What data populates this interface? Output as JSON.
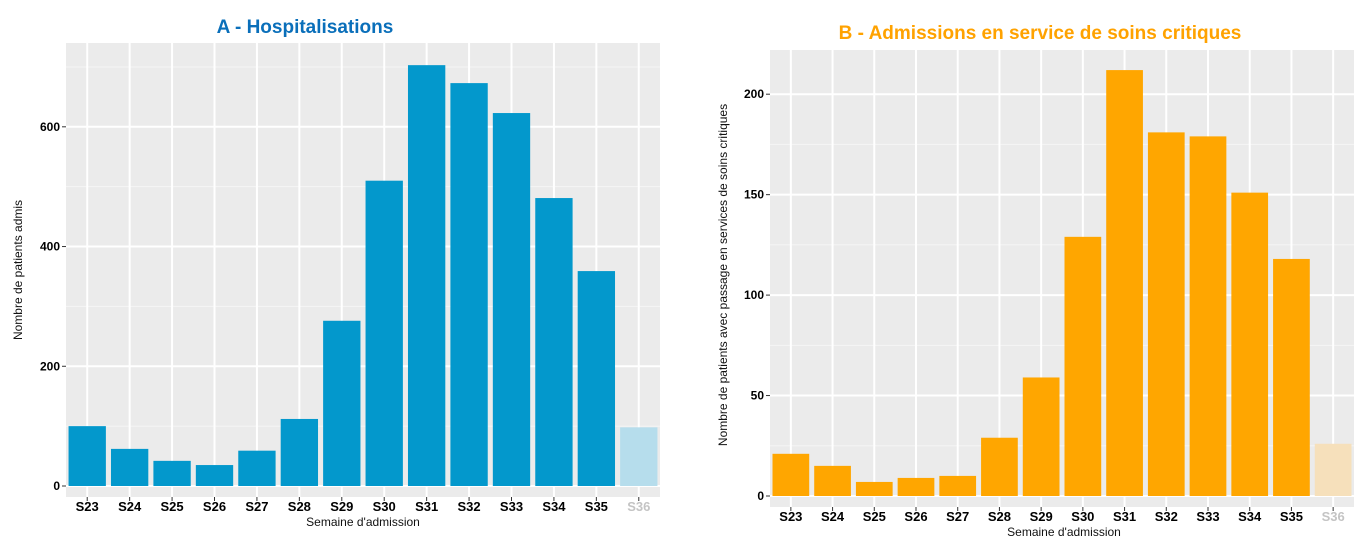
{
  "chart_data": [
    {
      "type": "bar",
      "title": "A - Hospitalisations",
      "title_color": "#0a6fba",
      "bar_color": "#0398cc",
      "faded_color": "#b6ddec",
      "xlabel": "Semaine d'admission",
      "ylabel": "Nombre de patients admis",
      "categories": [
        "S23",
        "S24",
        "S25",
        "S26",
        "S27",
        "S28",
        "S29",
        "S30",
        "S31",
        "S32",
        "S33",
        "S34",
        "S35",
        "S36"
      ],
      "values": [
        100,
        62,
        42,
        35,
        59,
        112,
        276,
        510,
        703,
        673,
        623,
        481,
        359,
        98
      ],
      "faded_categories": [
        "S36"
      ],
      "yticks": [
        0,
        200,
        400,
        600
      ],
      "ylim": [
        0,
        740
      ],
      "grid": true
    },
    {
      "type": "bar",
      "title": "B - Admissions en service de soins critiques",
      "title_color": "#ffa200",
      "bar_color": "#ffa600",
      "faded_color": "#f6e0bb",
      "xlabel": "Semaine d'admission",
      "ylabel": "Nombre de patients avec passage en services de soins critiques",
      "categories": [
        "S23",
        "S24",
        "S25",
        "S26",
        "S27",
        "S28",
        "S29",
        "S30",
        "S31",
        "S32",
        "S33",
        "S34",
        "S35",
        "S36"
      ],
      "values": [
        21,
        15,
        7,
        9,
        10,
        29,
        59,
        129,
        212,
        181,
        179,
        151,
        118,
        26
      ],
      "faded_categories": [
        "S36"
      ],
      "yticks": [
        0,
        50,
        100,
        150,
        200
      ],
      "ylim": [
        0,
        222
      ],
      "grid": true
    }
  ]
}
